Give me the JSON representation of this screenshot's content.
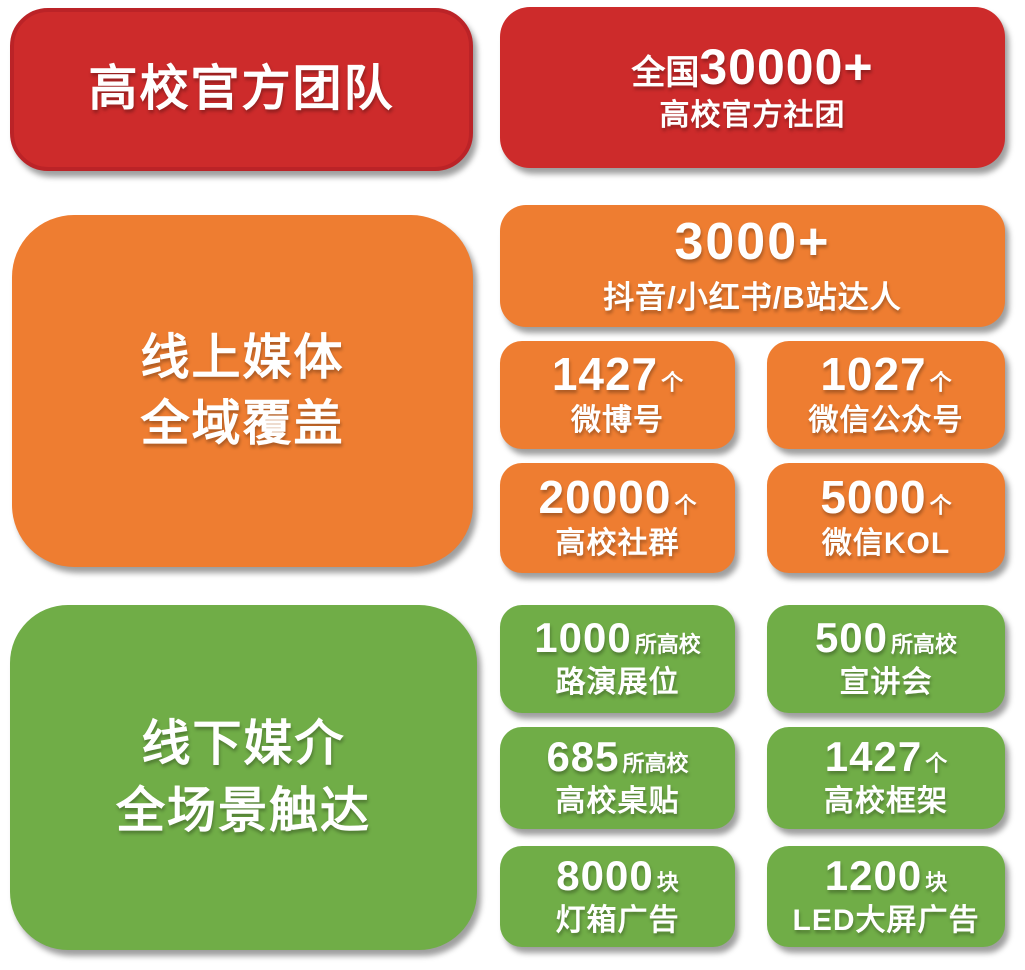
{
  "colors": {
    "red": "#cd2b2b",
    "red_border": "#bb2327",
    "orange": "#ee7d31",
    "green": "#70ad47",
    "text": "#ffffff"
  },
  "sections": [
    {
      "id": "official-team",
      "title": "高校官方团队",
      "stat": {
        "prefix": "全国",
        "number": "30000+",
        "label": "高校官方社团"
      }
    },
    {
      "id": "online-media",
      "title_line1": "线上媒体",
      "title_line2": "全域覆盖",
      "hero": {
        "number": "3000+",
        "label": "抖音/小红书/B站达人"
      },
      "stats": [
        {
          "number": "1427",
          "unit": "个",
          "label": "微博号"
        },
        {
          "number": "1027",
          "unit": "个",
          "label": "微信公众号"
        },
        {
          "number": "20000",
          "unit": "个",
          "label": "高校社群"
        },
        {
          "number": "5000",
          "unit": "个",
          "label": "微信KOL"
        }
      ]
    },
    {
      "id": "offline-media",
      "title_line1": "线下媒介",
      "title_line2": "全场景触达",
      "stats": [
        {
          "number": "1000",
          "unit": "所高校",
          "label": "路演展位"
        },
        {
          "number": "500",
          "unit": "所高校",
          "label": "宣讲会"
        },
        {
          "number": "685",
          "unit": "所高校",
          "label": "高校桌贴"
        },
        {
          "number": "1427",
          "unit": "个",
          "label": "高校框架"
        },
        {
          "number": "8000",
          "unit": "块",
          "label": "灯箱广告"
        },
        {
          "number": "1200",
          "unit": "块",
          "label": "LED大屏广告"
        }
      ]
    }
  ]
}
